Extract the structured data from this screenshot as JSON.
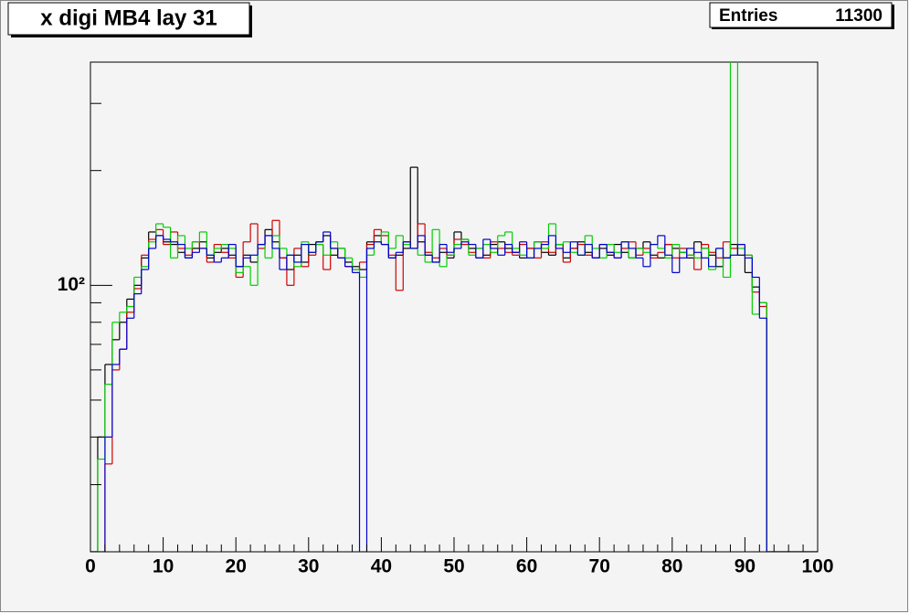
{
  "chart_data": {
    "type": "histogram",
    "title": "x digi MB4 lay 31",
    "stats": {
      "label": "Entries",
      "value": 11300
    },
    "bins": [
      0,
      1,
      2,
      3,
      4,
      5,
      6,
      7,
      8,
      9,
      10,
      11,
      12,
      13,
      14,
      15,
      16,
      17,
      18,
      19,
      20,
      21,
      22,
      23,
      24,
      25,
      26,
      27,
      28,
      29,
      30,
      31,
      32,
      33,
      34,
      35,
      36,
      37,
      38,
      39,
      40,
      41,
      42,
      43,
      44,
      45,
      46,
      47,
      48,
      49,
      50,
      51,
      52,
      53,
      54,
      55,
      56,
      57,
      58,
      59,
      60,
      61,
      62,
      63,
      64,
      65,
      66,
      67,
      68,
      69,
      70,
      71,
      72,
      73,
      74,
      75,
      76,
      77,
      78,
      79,
      80,
      81,
      82,
      83,
      84,
      85,
      86,
      87,
      88,
      89,
      90,
      91,
      92,
      93,
      94,
      95,
      96,
      97,
      98,
      99,
      100
    ],
    "series": [
      {
        "color": "#000000",
        "values": [
          0,
          40,
          62,
          72,
          80,
          92,
          100,
          118,
          138,
          135,
          130,
          128,
          122,
          118,
          125,
          130,
          118,
          122,
          125,
          120,
          112,
          120,
          115,
          128,
          140,
          130,
          118,
          110,
          120,
          115,
          128,
          130,
          135,
          120,
          125,
          115,
          112,
          110,
          130,
          135,
          128,
          118,
          120,
          125,
          204,
          130,
          120,
          115,
          122,
          118,
          138,
          132,
          125,
          118,
          120,
          128,
          130,
          125,
          122,
          118,
          125,
          130,
          122,
          120,
          128,
          118,
          125,
          130,
          122,
          118,
          125,
          120,
          128,
          122,
          118,
          125,
          130,
          120,
          118,
          128,
          125,
          122,
          118,
          130,
          125,
          120,
          112,
          118,
          128,
          120,
          108,
          99,
          90,
          0,
          0,
          0,
          0,
          0,
          0,
          0
        ]
      },
      {
        "color": "#d00000",
        "values": [
          0,
          0,
          34,
          60,
          68,
          85,
          98,
          120,
          132,
          140,
          128,
          138,
          125,
          120,
          130,
          125,
          115,
          128,
          122,
          118,
          105,
          130,
          145,
          125,
          135,
          148,
          118,
          100,
          125,
          112,
          120,
          128,
          110,
          125,
          118,
          112,
          110,
          115,
          128,
          140,
          135,
          120,
          97,
          130,
          125,
          145,
          122,
          118,
          125,
          120,
          132,
          128,
          122,
          125,
          118,
          130,
          125,
          122,
          120,
          128,
          125,
          118,
          130,
          122,
          128,
          115,
          125,
          128,
          120,
          118,
          128,
          122,
          118,
          125,
          130,
          120,
          125,
          118,
          122,
          128,
          118,
          125,
          120,
          110,
          128,
          122,
          118,
          130,
          125,
          128,
          120,
          96,
          88,
          0,
          0,
          0,
          0,
          0,
          0,
          0
        ]
      },
      {
        "color": "#00d000",
        "values": [
          0,
          35,
          55,
          80,
          85,
          88,
          105,
          112,
          130,
          145,
          142,
          118,
          135,
          125,
          130,
          138,
          120,
          125,
          128,
          125,
          108,
          112,
          100,
          128,
          118,
          135,
          125,
          120,
          112,
          130,
          122,
          128,
          120,
          130,
          125,
          118,
          110,
          105,
          120,
          130,
          138,
          125,
          135,
          128,
          125,
          120,
          115,
          140,
          112,
          120,
          128,
          132,
          120,
          125,
          128,
          122,
          135,
          138,
          125,
          120,
          118,
          130,
          125,
          145,
          128,
          130,
          122,
          120,
          135,
          125,
          118,
          128,
          122,
          130,
          118,
          125,
          122,
          128,
          125,
          118,
          128,
          122,
          120,
          118,
          125,
          110,
          125,
          105,
          400,
          125,
          120,
          84,
          90,
          0,
          0,
          0,
          0,
          0,
          0,
          0
        ]
      },
      {
        "color": "#0000d0",
        "values": [
          0,
          0,
          40,
          62,
          68,
          82,
          95,
          110,
          125,
          135,
          132,
          130,
          128,
          118,
          122,
          125,
          120,
          115,
          118,
          128,
          112,
          118,
          120,
          128,
          135,
          125,
          110,
          120,
          115,
          128,
          122,
          130,
          138,
          125,
          118,
          112,
          108,
          0,
          125,
          130,
          128,
          118,
          122,
          130,
          125,
          135,
          120,
          115,
          128,
          122,
          125,
          130,
          128,
          118,
          132,
          125,
          120,
          128,
          122,
          130,
          118,
          125,
          128,
          135,
          125,
          122,
          130,
          120,
          128,
          118,
          128,
          122,
          118,
          130,
          125,
          118,
          112,
          128,
          135,
          120,
          108,
          118,
          125,
          122,
          118,
          112,
          125,
          118,
          120,
          128,
          118,
          105,
          82,
          0,
          0,
          0,
          0,
          0,
          0,
          0
        ]
      }
    ],
    "log_y": true,
    "xlim": [
      0,
      100
    ],
    "xticks": [
      0,
      10,
      20,
      30,
      40,
      50,
      60,
      70,
      80,
      90,
      100
    ],
    "ylim": [
      20,
      385
    ],
    "yticks": [
      {
        "value": 100,
        "label": "10²"
      }
    ]
  }
}
